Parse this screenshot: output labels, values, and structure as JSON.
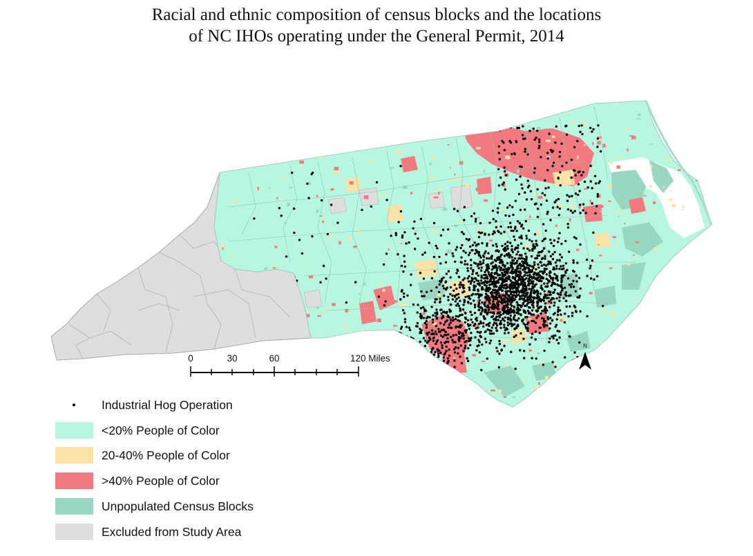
{
  "title": {
    "line1": "Racial and ethnic composition of census blocks and the locations",
    "line2": "of NC IHOs operating under the General Permit, 2014"
  },
  "scale_bar": {
    "ticks": [
      "0",
      "30",
      "60",
      "120 Miles"
    ],
    "values_miles": [
      0,
      30,
      60,
      120
    ]
  },
  "north_arrow": {
    "label": "N"
  },
  "legend": {
    "items": [
      {
        "label": "Industrial Hog Operation",
        "symbol": "dot",
        "color": "#000000"
      },
      {
        "label": "<20% People of Color",
        "symbol": "fill",
        "color": "#b7f7df"
      },
      {
        "label": "20-40% People of Color",
        "symbol": "fill",
        "color": "#fbe3a6"
      },
      {
        "label": ">40% People of Color",
        "symbol": "fill",
        "color": "#f27a7e"
      },
      {
        "label": "Unpopulated Census Blocks",
        "symbol": "fill",
        "color": "#9ad7c1"
      },
      {
        "label": "Excluded from Study Area",
        "symbol": "fill",
        "color": "#dedede"
      }
    ]
  },
  "colors": {
    "low": "#b7f7df",
    "mid": "#fbe3a6",
    "high": "#f27a7e",
    "unpopulated": "#9ad7c1",
    "excluded": "#dedede",
    "operation": "#000000"
  }
}
